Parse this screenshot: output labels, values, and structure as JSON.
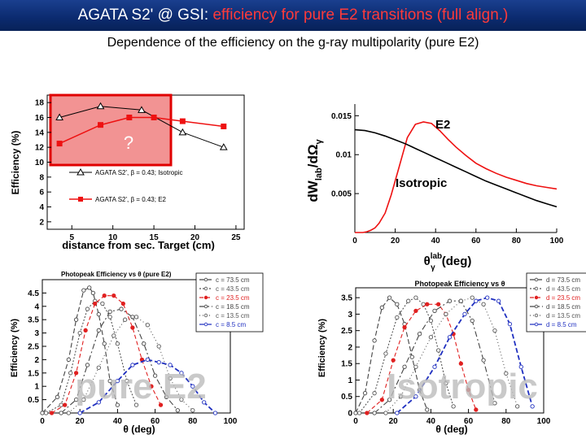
{
  "title": {
    "prefix": "AGATA S2' @ GSI: ",
    "accent": "efficiency for pure E2 transitions (full align.)",
    "accent_color": "#ff3a3a"
  },
  "subtitle": "Dependence of the efficiency on the g-ray multipolarity (pure E2)",
  "chart_data": [
    {
      "type": "line",
      "xlabel": "distance from sec. Target (cm)",
      "ylabel": "Efficiency (%)",
      "xlim": [
        2,
        26
      ],
      "ylim": [
        1,
        19
      ],
      "xticks": [
        5,
        10,
        15,
        20,
        25
      ],
      "yticks": [
        2,
        4,
        6,
        8,
        10,
        12,
        14,
        16,
        18
      ],
      "series": [
        {
          "name": "AGATA S2', β = 0.43; Isotropic",
          "color": "#000000",
          "marker": "triangle-open",
          "x": [
            3.5,
            8.5,
            13.5,
            18.5,
            23.5
          ],
          "y": [
            16.0,
            17.5,
            17.0,
            14.0,
            12.0
          ]
        },
        {
          "name": "AGATA S2', β = 0.43; E2",
          "color": "#ee1111",
          "marker": "square",
          "x": [
            3.5,
            8.5,
            12.0,
            15.0,
            18.5,
            23.5
          ],
          "y": [
            12.5,
            15.0,
            16.0,
            16.0,
            15.5,
            14.8
          ]
        }
      ],
      "annotation": "?",
      "highlight_color": "#f08080",
      "grid": false,
      "legend": "lower-right"
    },
    {
      "type": "line",
      "xlabel_symbol": "θ",
      "xlabel_sup": "lab",
      "xlabel_sub": "γ",
      "xlabel_unit": "(deg)",
      "ylabel_main": "dW",
      "ylabel_sub": "lab",
      "ylabel_tail": "/dΩ",
      "ylabel_tail_sub": "γ",
      "xlim": [
        0,
        100
      ],
      "ylim": [
        0,
        0.0165
      ],
      "xticks": [
        0,
        20,
        40,
        60,
        80,
        100
      ],
      "yticks": [
        0.005,
        0.01,
        0.015
      ],
      "ytick_labels": [
        "0.005",
        "0.01",
        "0.015"
      ],
      "series": [
        {
          "name": "E2",
          "color": "#ee1111",
          "x": [
            0,
            4,
            6,
            8,
            10,
            12,
            15,
            18,
            22,
            26,
            30,
            34,
            38,
            42,
            46,
            50,
            55,
            60,
            65,
            70,
            75,
            80,
            85,
            90,
            95,
            100
          ],
          "y": [
            0,
            0,
            0.0001,
            0.0003,
            0.0006,
            0.0012,
            0.0025,
            0.0048,
            0.0085,
            0.0122,
            0.0139,
            0.0142,
            0.014,
            0.0131,
            0.012,
            0.011,
            0.0099,
            0.0089,
            0.0082,
            0.0076,
            0.0071,
            0.0067,
            0.0063,
            0.006,
            0.0058,
            0.0056
          ]
        },
        {
          "name": "Isotropic",
          "color": "#000000",
          "x": [
            0,
            5,
            10,
            15,
            20,
            25,
            30,
            35,
            40,
            45,
            50,
            55,
            60,
            65,
            70,
            75,
            80,
            85,
            90,
            95,
            100
          ],
          "y": [
            0.0132,
            0.0131,
            0.0128,
            0.0124,
            0.0119,
            0.0114,
            0.0108,
            0.0102,
            0.0096,
            0.009,
            0.0084,
            0.0078,
            0.0072,
            0.0066,
            0.0061,
            0.0056,
            0.0051,
            0.0046,
            0.0041,
            0.0037,
            0.0033
          ]
        }
      ],
      "labels": {
        "e2": "E2",
        "iso": "Isotropic"
      }
    },
    {
      "type": "line",
      "title": "Photopeak Efficiency vs θ (pure E2)",
      "xlabel": "θ (deg)",
      "ylabel": "Efficiency (%)",
      "xlim": [
        0,
        100
      ],
      "ylim": [
        0,
        5
      ],
      "xticks": [
        0,
        20,
        40,
        60,
        80,
        100
      ],
      "yticks": [
        0.5,
        1,
        1.5,
        2,
        2.5,
        3,
        3.5,
        4,
        4.5
      ],
      "ytick_labels": [
        "0.5",
        "1",
        "1.5",
        "2",
        "2.5",
        "3",
        "3.5",
        "4",
        "4.5"
      ],
      "watermark": "pure E2",
      "series": [
        {
          "name": "c = 73.5 cm",
          "color": "#444444",
          "dash": "6,3",
          "x": [
            0,
            8,
            14,
            18,
            22,
            25,
            27,
            30,
            33,
            36,
            40
          ],
          "y": [
            0,
            0.6,
            2.0,
            3.5,
            4.6,
            4.7,
            4.5,
            3.7,
            2.6,
            1.2,
            0.3
          ]
        },
        {
          "name": "c = 43.5 cm",
          "color": "#555555",
          "dash": "2,2",
          "x": [
            2,
            10,
            15,
            20,
            24,
            28,
            32,
            36,
            40,
            45,
            50
          ],
          "y": [
            0,
            0.3,
            1.5,
            3.0,
            3.9,
            4.2,
            4.1,
            3.6,
            2.6,
            1.2,
            0.3
          ]
        },
        {
          "name": "c = 23.5 cm",
          "color": "#e02020",
          "dash": "5,3",
          "x": [
            5,
            12,
            18,
            23,
            28,
            33,
            38,
            43,
            48,
            53,
            58,
            63
          ],
          "y": [
            0,
            0.3,
            1.5,
            3.1,
            4.1,
            4.4,
            4.4,
            4.1,
            3.2,
            2.0,
            1.0,
            0.3
          ]
        },
        {
          "name": "c = 18.5 cm",
          "color": "#444444",
          "dash": "7,3,2,3",
          "x": [
            10,
            18,
            24,
            30,
            36,
            42,
            48,
            54,
            60,
            66,
            72
          ],
          "y": [
            0,
            0.5,
            1.8,
            3.1,
            3.8,
            3.9,
            3.6,
            2.6,
            1.4,
            0.6,
            0.1
          ]
        },
        {
          "name": "c = 13.5 cm",
          "color": "#555555",
          "dash": "1,3",
          "x": [
            14,
            22,
            30,
            38,
            44,
            50,
            56,
            62,
            68,
            74,
            80
          ],
          "y": [
            0,
            0.5,
            1.7,
            2.9,
            3.5,
            3.6,
            3.3,
            2.5,
            1.3,
            0.5,
            0.1
          ]
        },
        {
          "name": "c = 8.5 cm",
          "color": "#2030c0",
          "dash": "6,3",
          "x": [
            20,
            30,
            40,
            48,
            56,
            62,
            68,
            74,
            80,
            86,
            92
          ],
          "y": [
            0,
            0.4,
            1.2,
            1.8,
            2.0,
            1.9,
            1.8,
            1.5,
            1.0,
            0.4,
            0.0
          ]
        }
      ],
      "legend": "top-right"
    },
    {
      "type": "line",
      "title": "Photopeak Efficiency vs θ",
      "xlabel": "θ (deg)",
      "ylabel": "Efficiency (%)",
      "xlim": [
        0,
        100
      ],
      "ylim": [
        0,
        3.8
      ],
      "xticks": [
        0,
        20,
        40,
        60,
        80,
        100
      ],
      "yticks": [
        0,
        0.5,
        1,
        1.5,
        2,
        2.5,
        3,
        3.5
      ],
      "ytick_labels": [
        "0",
        "0.5",
        "1",
        "1.5",
        "2",
        "2.5",
        "3",
        "3.5"
      ],
      "watermark": "Isotropic",
      "series": [
        {
          "name": "d = 73.5 cm",
          "color": "#444444",
          "dash": "6,3",
          "x": [
            0,
            5,
            10,
            14,
            18,
            22,
            26,
            30,
            34,
            38
          ],
          "y": [
            0,
            0.6,
            2.2,
            3.2,
            3.5,
            3.3,
            2.7,
            1.7,
            0.7,
            0.1
          ]
        },
        {
          "name": "d = 43.5 cm",
          "color": "#555555",
          "dash": "2,2",
          "x": [
            2,
            10,
            16,
            22,
            28,
            32,
            36,
            40,
            44,
            48,
            52
          ],
          "y": [
            0,
            0.6,
            1.8,
            2.9,
            3.4,
            3.5,
            3.3,
            2.8,
            1.9,
            0.9,
            0.2
          ]
        },
        {
          "name": "d = 23.5 cm",
          "color": "#e02020",
          "dash": "5,3",
          "x": [
            6,
            14,
            20,
            26,
            32,
            38,
            44,
            48,
            52,
            56,
            60,
            64
          ],
          "y": [
            0,
            0.4,
            1.6,
            2.6,
            3.1,
            3.3,
            3.3,
            3.0,
            2.4,
            1.5,
            0.7,
            0.1
          ]
        },
        {
          "name": "d = 18.5 cm",
          "color": "#444444",
          "dash": "7,3,2,3",
          "x": [
            10,
            18,
            26,
            34,
            42,
            50,
            56,
            62,
            68,
            74
          ],
          "y": [
            0,
            0.4,
            1.4,
            2.4,
            3.1,
            3.4,
            3.4,
            2.8,
            1.6,
            0.3
          ]
        },
        {
          "name": "d = 13.5 cm",
          "color": "#555555",
          "dash": "1,3",
          "x": [
            16,
            24,
            32,
            40,
            48,
            56,
            62,
            68,
            74,
            80,
            86
          ],
          "y": [
            0,
            0.5,
            1.4,
            2.3,
            3.0,
            3.4,
            3.5,
            3.3,
            2.5,
            1.2,
            0.2
          ]
        },
        {
          "name": "d = 8.5 cm",
          "color": "#2030c0",
          "dash": "6,3",
          "x": [
            22,
            32,
            42,
            50,
            58,
            64,
            70,
            76,
            82,
            88,
            94
          ],
          "y": [
            0,
            0.5,
            1.4,
            2.3,
            3.0,
            3.4,
            3.5,
            3.4,
            2.7,
            1.4,
            0.2
          ]
        }
      ],
      "legend": "top-right"
    }
  ]
}
